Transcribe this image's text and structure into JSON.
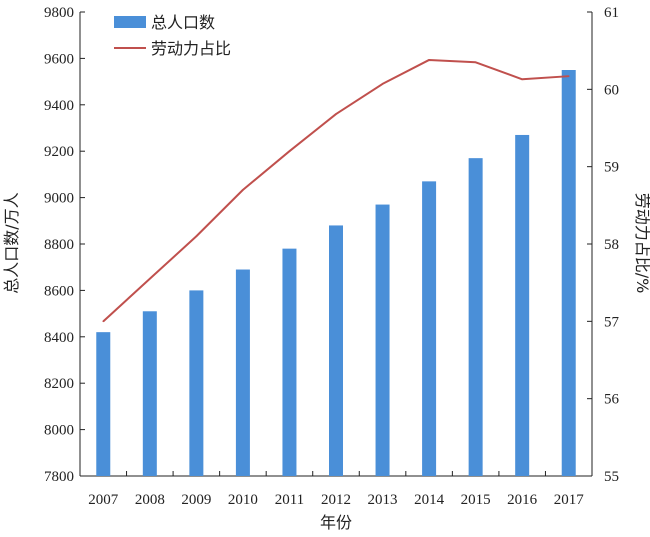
{
  "chart_data": {
    "type": "bar+line",
    "categories": [
      "2007",
      "2008",
      "2009",
      "2010",
      "2011",
      "2012",
      "2013",
      "2014",
      "2015",
      "2016",
      "2017"
    ],
    "xlabel": "年份",
    "ylabel_left": "总人口数/万人",
    "ylabel_right": "劳动力占比/%",
    "y_left": {
      "range": [
        7800,
        9800
      ],
      "ticks": [
        7800,
        8000,
        8200,
        8400,
        8600,
        8800,
        9000,
        9200,
        9400,
        9600,
        9800
      ]
    },
    "y_right": {
      "range": [
        55,
        61
      ],
      "ticks": [
        55,
        56,
        57,
        58,
        59,
        60,
        61
      ]
    },
    "series": [
      {
        "name": "总人口数",
        "type": "bar",
        "axis": "left",
        "color": "#4a8fd8",
        "values": [
          8420,
          8510,
          8600,
          8690,
          8780,
          8880,
          8970,
          9070,
          9170,
          9270,
          9550
        ]
      },
      {
        "name": "劳动力占比",
        "type": "line",
        "axis": "right",
        "color": "#c0504d",
        "values": [
          57.0,
          57.55,
          58.1,
          58.7,
          59.2,
          59.68,
          60.07,
          60.38,
          60.35,
          60.13,
          60.17
        ]
      }
    ],
    "legend": "top-left",
    "grid": false
  }
}
